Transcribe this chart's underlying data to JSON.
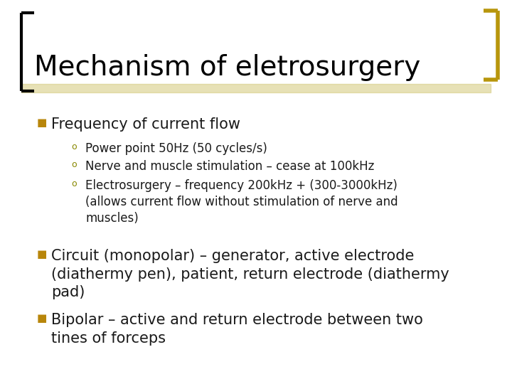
{
  "title": "Mechanism of eletrosurgery",
  "background_color": "#ffffff",
  "title_color": "#000000",
  "title_fontsize": 28,
  "left_bracket_color": "#000000",
  "right_bracket_color": "#b8960c",
  "bar_color": "#d4c97a",
  "bullet_color": "#b8860b",
  "sub_bullet_color": "#888800",
  "text_color": "#1a1a1a",
  "bullet1": "Frequency of current flow",
  "sub_bullets": [
    "Power point 50Hz (50 cycles/s)",
    "Nerve and muscle stimulation – cease at 100kHz",
    "Electrosurgery – frequency 200kHz + (300-3000kHz)\n(allows current flow without stimulation of nerve and\nmuscles)"
  ],
  "bullet2": "Circuit (monopolar) – generator, active electrode\n(diathermy pen), patient, return electrode (diathermy\npad)",
  "bullet3": "Bipolar – active and return electrode between two\ntines of forceps",
  "font_family": "DejaVu Sans"
}
